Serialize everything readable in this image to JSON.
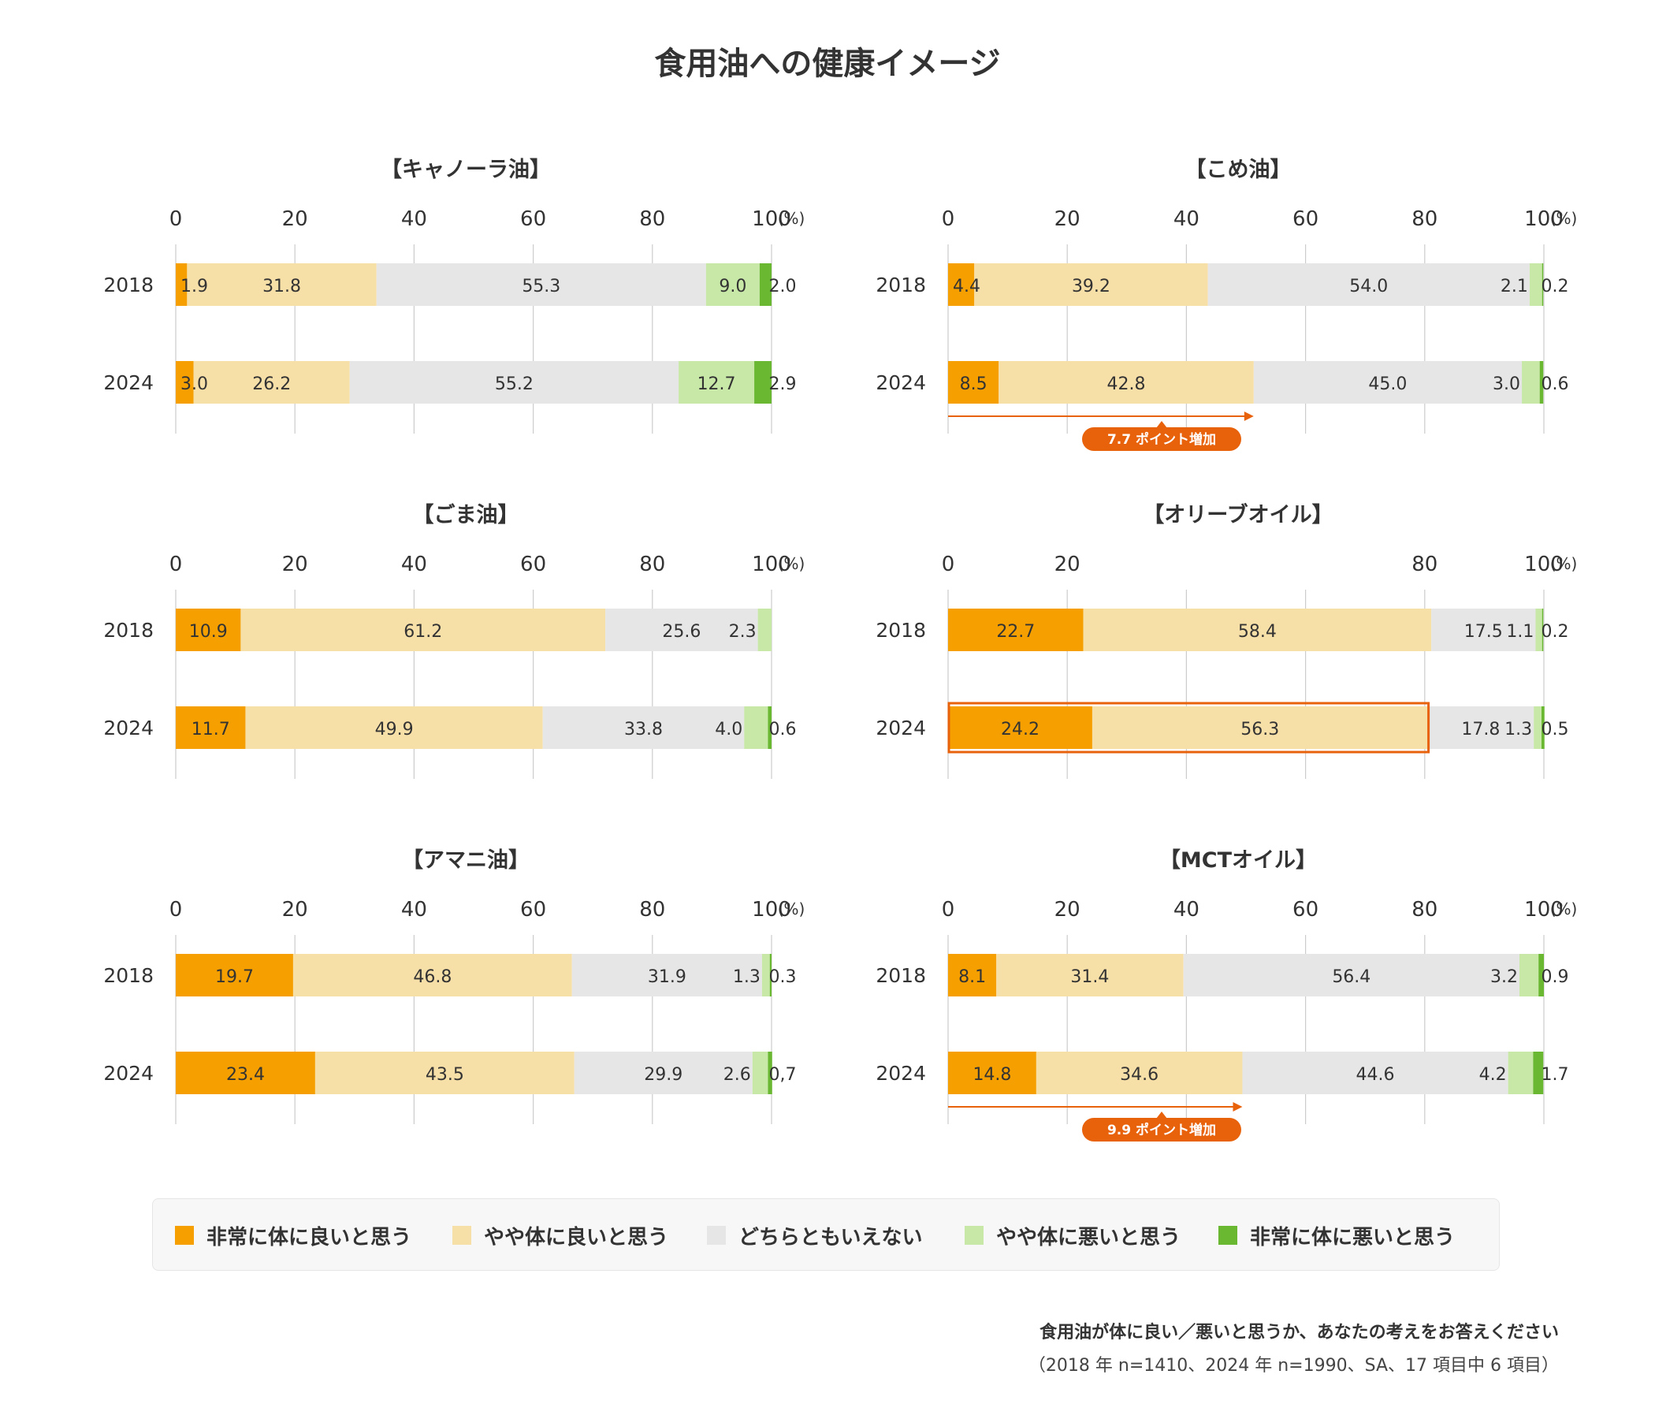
{
  "title": "食用油への健康イメージ",
  "colors": {
    "very_good": "#f5a000",
    "somewhat_good": "#f7dfa8",
    "neutral": "#e6e6e6",
    "somewhat_bad": "#c8e8a8",
    "very_bad": "#6ab832",
    "annotation": "#e8620c",
    "grid": "#cccccc",
    "text": "#333333"
  },
  "legend": [
    {
      "key": "very_good",
      "label": "非常に体に良いと思う"
    },
    {
      "key": "somewhat_good",
      "label": "やや体に良いと思う"
    },
    {
      "key": "neutral",
      "label": "どちらともいえない"
    },
    {
      "key": "somewhat_bad",
      "label": "やや体に悪いと思う"
    },
    {
      "key": "very_bad",
      "label": "非常に体に悪いと思う"
    }
  ],
  "chart_data": [
    {
      "type": "bar",
      "orientation": "horizontal-stacked",
      "title": "【キャノーラ油】",
      "unit": "(%)",
      "xlim": [
        0,
        100
      ],
      "ticks": [
        "0",
        "20",
        "40",
        "60",
        "80",
        "100"
      ],
      "categories": [
        "2018",
        "2024"
      ],
      "series": [
        {
          "name": "非常に体に良いと思う",
          "values": [
            1.9,
            3.0
          ],
          "labels": [
            "1.9",
            "3.0"
          ]
        },
        {
          "name": "やや体に良いと思う",
          "values": [
            31.8,
            26.2
          ],
          "labels": [
            "31.8",
            "26.2"
          ]
        },
        {
          "name": "どちらともいえない",
          "values": [
            55.3,
            55.2
          ],
          "labels": [
            "55.3",
            "55.2"
          ]
        },
        {
          "name": "やや体に悪いと思う",
          "values": [
            9.0,
            12.7
          ],
          "labels": [
            "9.0",
            "12.7"
          ]
        },
        {
          "name": "非常に体に悪いと思う",
          "values": [
            2.0,
            2.9
          ],
          "labels": [
            "2.0",
            "2.9"
          ]
        }
      ]
    },
    {
      "type": "bar",
      "orientation": "horizontal-stacked",
      "title": "【こめ油】",
      "unit": "(%)",
      "xlim": [
        0,
        100
      ],
      "ticks": [
        "0",
        "20",
        "40",
        "60",
        "80",
        "100"
      ],
      "categories": [
        "2018",
        "2024"
      ],
      "series": [
        {
          "name": "非常に体に良いと思う",
          "values": [
            4.4,
            8.5
          ],
          "labels": [
            "4.4",
            "8.5"
          ]
        },
        {
          "name": "やや体に良いと思う",
          "values": [
            39.2,
            42.8
          ],
          "labels": [
            "39.2",
            "42.8"
          ]
        },
        {
          "name": "どちらともいえない",
          "values": [
            54.0,
            45.0
          ],
          "labels": [
            "54.0",
            "45.0"
          ]
        },
        {
          "name": "やや体に悪いと思う",
          "values": [
            2.1,
            3.0
          ],
          "labels": [
            "2.1",
            "3.0"
          ]
        },
        {
          "name": "非常に体に悪いと思う",
          "values": [
            0.2,
            0.6
          ],
          "labels": [
            "0.2",
            "0.6"
          ]
        }
      ],
      "annotation": {
        "text": "7.7 ポイント増加",
        "to_value": 51.3
      }
    },
    {
      "type": "bar",
      "orientation": "horizontal-stacked",
      "title": "【ごま油】",
      "unit": "(%)",
      "xlim": [
        0,
        100
      ],
      "ticks": [
        "0",
        "20",
        "40",
        "60",
        "80",
        "100"
      ],
      "categories": [
        "2018",
        "2024"
      ],
      "series": [
        {
          "name": "非常に体に良いと思う",
          "values": [
            10.9,
            11.7
          ],
          "labels": [
            "10.9",
            "11.7"
          ]
        },
        {
          "name": "やや体に良いと思う",
          "values": [
            61.2,
            49.9
          ],
          "labels": [
            "61.2",
            "49.9"
          ]
        },
        {
          "name": "どちらともいえない",
          "values": [
            25.6,
            33.8
          ],
          "labels": [
            "25.6",
            "33.8"
          ]
        },
        {
          "name": "やや体に悪いと思う",
          "values": [
            2.3,
            4.0
          ],
          "labels": [
            "2.3",
            "4.0"
          ]
        },
        {
          "name": "非常に体に悪いと思う",
          "values": [
            0,
            0.6
          ],
          "labels": [
            "",
            "0.6"
          ]
        }
      ]
    },
    {
      "type": "bar",
      "orientation": "horizontal-stacked",
      "title": "【オリーブオイル】",
      "unit": "(%)",
      "xlim": [
        0,
        100
      ],
      "ticks": [
        "0",
        "20",
        "",
        "",
        "80",
        "100"
      ],
      "categories": [
        "2018",
        "2024"
      ],
      "series": [
        {
          "name": "非常に体に良いと思う",
          "values": [
            22.7,
            24.2
          ],
          "labels": [
            "22.7",
            "24.2"
          ]
        },
        {
          "name": "やや体に良いと思う",
          "values": [
            58.4,
            56.3
          ],
          "labels": [
            "58.4",
            "56.3"
          ]
        },
        {
          "name": "どちらともいえない",
          "values": [
            17.5,
            17.8
          ],
          "labels": [
            "17.5",
            "17.8"
          ]
        },
        {
          "name": "やや体に悪いと思う",
          "values": [
            1.1,
            1.3
          ],
          "labels": [
            "1.1",
            "1.3"
          ]
        },
        {
          "name": "非常に体に悪いと思う",
          "values": [
            0.2,
            0.5
          ],
          "labels": [
            "0.2",
            "0.5"
          ]
        }
      ],
      "highlight": {
        "category": "2024",
        "from_value": 0,
        "to_value": 80.5
      }
    },
    {
      "type": "bar",
      "orientation": "horizontal-stacked",
      "title": "【アマニ油】",
      "unit": "(%)",
      "xlim": [
        0,
        100
      ],
      "ticks": [
        "0",
        "20",
        "40",
        "60",
        "80",
        "100"
      ],
      "categories": [
        "2018",
        "2024"
      ],
      "series": [
        {
          "name": "非常に体に良いと思う",
          "values": [
            19.7,
            23.4
          ],
          "labels": [
            "19.7",
            "23.4"
          ]
        },
        {
          "name": "やや体に良いと思う",
          "values": [
            46.8,
            43.5
          ],
          "labels": [
            "46.8",
            "43.5"
          ]
        },
        {
          "name": "どちらともいえない",
          "values": [
            31.9,
            29.9
          ],
          "labels": [
            "31.9",
            "29.9"
          ]
        },
        {
          "name": "やや体に悪いと思う",
          "values": [
            1.3,
            2.6
          ],
          "labels": [
            "1.3",
            "2.6"
          ]
        },
        {
          "name": "非常に体に悪いと思う",
          "values": [
            0.3,
            0.7
          ],
          "labels": [
            "0.3",
            "0,7"
          ]
        }
      ]
    },
    {
      "type": "bar",
      "orientation": "horizontal-stacked",
      "title": "【MCTオイル】",
      "unit": "(%)",
      "xlim": [
        0,
        100
      ],
      "ticks": [
        "0",
        "20",
        "40",
        "60",
        "80",
        "100"
      ],
      "categories": [
        "2018",
        "2024"
      ],
      "series": [
        {
          "name": "非常に体に良いと思う",
          "values": [
            8.1,
            14.8
          ],
          "labels": [
            "8.1",
            "14.8"
          ]
        },
        {
          "name": "やや体に良いと思う",
          "values": [
            31.4,
            34.6
          ],
          "labels": [
            "31.4",
            "34.6"
          ]
        },
        {
          "name": "どちらともいえない",
          "values": [
            56.4,
            44.6
          ],
          "labels": [
            "56.4",
            "44.6"
          ]
        },
        {
          "name": "やや体に悪いと思う",
          "values": [
            3.2,
            4.2
          ],
          "labels": [
            "3.2",
            "4.2"
          ]
        },
        {
          "name": "非常に体に悪いと思う",
          "values": [
            0.9,
            1.7
          ],
          "labels": [
            "0.9",
            "1.7"
          ]
        }
      ],
      "annotation": {
        "text": "9.9 ポイント増加",
        "to_value": 49.4
      }
    }
  ],
  "footnote": {
    "question": "食用油が体に良い／悪いと思うか、あなたの考えをお答えください",
    "sample": "（2018 年 n=1410、2024 年 n=1990、SA、17 項目中 6 項目）"
  }
}
